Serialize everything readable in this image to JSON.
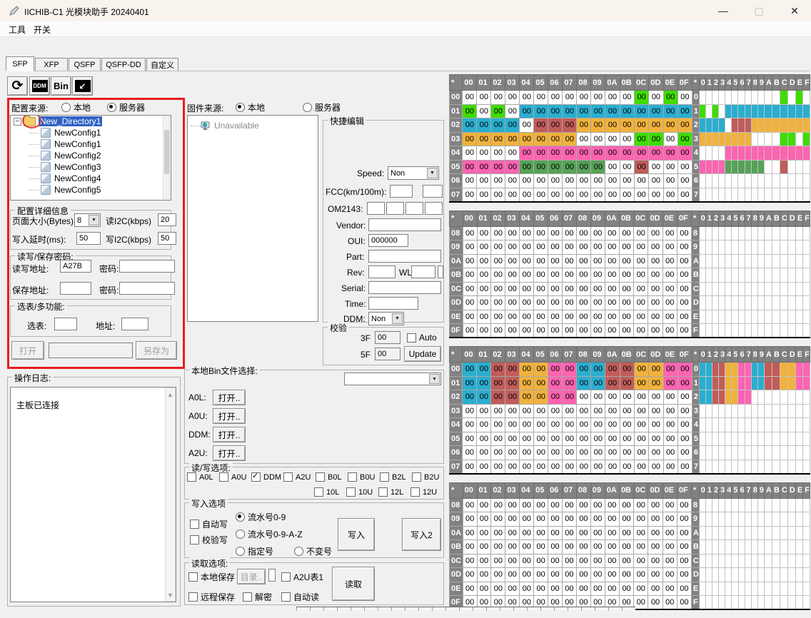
{
  "window": {
    "title": "IICHIB-C1 光模块助手 20240401",
    "minimize_icon": "—",
    "maximize_icon": "▢",
    "close_icon": "✕"
  },
  "menu": {
    "items": [
      "工具",
      "开关"
    ]
  },
  "tabs": {
    "items": [
      "SFP",
      "XFP",
      "QSFP",
      "QSFP-DD",
      "自定义"
    ],
    "active": "SFP"
  },
  "toolbar": {
    "ddm_label": "DDM",
    "bin_label": "Bin"
  },
  "config_panel": {
    "source_label": "配置来源:",
    "opt_local": "本地",
    "opt_server": "服务器",
    "selected": "服务器",
    "tree": {
      "root": "New_Directory1",
      "items": [
        "NewConfig1",
        "NewConfig1",
        "NewConfig2",
        "NewConfig3",
        "NewConfig4",
        "NewConfig5"
      ]
    },
    "details": {
      "legend": "配置详细信息",
      "page_size_label": "页面大小(Bytes):",
      "page_size": "8",
      "read_i2c_label": "读I2C(kbps)",
      "read_i2c": "20",
      "write_delay_label": "写入延时(ms):",
      "write_delay": "50",
      "write_i2c_label": "写I2C(kbps)",
      "write_i2c": "50"
    },
    "password": {
      "legend": "读写/保存密码:",
      "rw_addr_label": "读写地址:",
      "rw_addr": "A27B",
      "pwd_label": "密码:",
      "pwd": "",
      "save_addr_label": "保存地址:",
      "save_addr": "",
      "pwd2_label": "密码:",
      "pwd2": ""
    },
    "multi": {
      "legend": "选表/多功能:",
      "select_label": "选表:",
      "select_value": "",
      "addr_label": "地址:",
      "addr_value": ""
    },
    "open_btn": "打开",
    "path_value": "",
    "saveas_btn": "另存为"
  },
  "log_panel": {
    "legend": "操作日志:",
    "content": "主板已连接"
  },
  "firmware": {
    "source_label": "固件来源:",
    "opt_local": "本地",
    "opt_server": "服务器",
    "selected": "本地",
    "tree_item": "Unavailable"
  },
  "quick_edit": {
    "legend": "快捷编辑",
    "speed_label": "Speed:",
    "speed": "Non",
    "fcc_label": "FCC(km/100m):",
    "fcc1": "",
    "fcc2": "",
    "om_label": "OM2143:",
    "om1": "",
    "om2": "",
    "om3": "",
    "om4": "",
    "vendor_label": "Vendor:",
    "vendor": "",
    "oui_label": "OUI:",
    "oui": "000000",
    "part_label": "Part:",
    "part": "",
    "rev_label": "Rev:",
    "rev": "",
    "wl_label": "WL",
    "wl1": "",
    "wl2": "",
    "serial_label": "Serial:",
    "serial": "",
    "time_label": "Time:",
    "time": "",
    "ddm_label": "DDM:",
    "ddm": "Non"
  },
  "verify": {
    "legend": "校验",
    "f3_label": "3F",
    "f3": "00",
    "auto_label": "Auto",
    "f5_label": "5F",
    "f5": "00",
    "update_btn": "Update"
  },
  "bin_select": {
    "legend": "本地Bin文件选择:",
    "dropdown_value": "",
    "rows": [
      {
        "label": "A0L:",
        "btn": "打开.."
      },
      {
        "label": "A0U:",
        "btn": "打开.."
      },
      {
        "label": "DDM:",
        "btn": "打开.."
      },
      {
        "label": "A2U:",
        "btn": "打开.."
      }
    ]
  },
  "rw_options": {
    "legend": "读/写选项:",
    "row1": [
      {
        "label": "A0L",
        "checked": false
      },
      {
        "label": "A0U",
        "checked": false
      },
      {
        "label": "DDM",
        "checked": true
      },
      {
        "label": "A2U",
        "checked": false
      },
      {
        "label": "B0L",
        "checked": false
      },
      {
        "label": "B0U",
        "checked": false
      },
      {
        "label": "B2L",
        "checked": false
      },
      {
        "label": "B2U",
        "checked": false
      }
    ],
    "row2": [
      {
        "label": "10L",
        "checked": false
      },
      {
        "label": "10U",
        "checked": false
      },
      {
        "label": "12L",
        "checked": false
      },
      {
        "label": "12U",
        "checked": false
      }
    ]
  },
  "write_options": {
    "legend": "写入选项",
    "auto_write": "自动写",
    "verify_write": "校验写",
    "radios": [
      "流水号0-9",
      "流水号0-9-A-Z",
      "指定号",
      "不变号"
    ],
    "selected_radio": "流水号0-9",
    "write_btn": "写入",
    "write2_btn": "写入2"
  },
  "read_options": {
    "legend": "读取选项:",
    "local_save": "本地保存",
    "dir_btn": "目录..",
    "a2u_table": "A2U表1",
    "remote_save": "远程保存",
    "decrypt": "解密",
    "auto_read": "自动读",
    "read_btn": "读取"
  },
  "hex_grids": {
    "corner": "*",
    "col_headers": [
      "00",
      "01",
      "02",
      "03",
      "04",
      "05",
      "06",
      "07",
      "08",
      "09",
      "0A",
      "0B",
      "0C",
      "0D",
      "0E",
      "0F"
    ],
    "mini_headers": "0123456789ABCDEF",
    "cell_text": "00",
    "palette": {
      "W": "#ffffff",
      "G": "#3fdc00",
      "C": "#2aaed0",
      "O": "#f1b23c",
      "P": "#ff63b1",
      "R": "#c15c5a",
      "D": "#56a257"
    },
    "grids": [
      {
        "row_labels": [
          "00",
          "01",
          "02",
          "03",
          "04",
          "05",
          "06",
          "07"
        ],
        "rows": [
          "WWWWWWWWWWWWGWGW",
          "GWGWCCCCCCCCCCCC",
          "CCCCWRRROOOOOOOO",
          "OOOOOOOOWWWWGGWG",
          "WWWWPPPPPPPPPPPP",
          "PPPPDDDDDDWWRWWW",
          "WWWWWWWWWWWWWWWW",
          "WWWWWWWWWWWWWWWW"
        ]
      },
      {
        "row_labels": [
          "08",
          "09",
          "0A",
          "0B",
          "0C",
          "0D",
          "0E",
          "0F"
        ],
        "rows": [
          "WWWWWWWWWWWWWWWW",
          "WWWWWWWWWWWWWWWW",
          "WWWWWWWWWWWWWWWW",
          "WWWWWWWWWWWWWWWW",
          "WWWWWWWWWWWWWWWW",
          "WWWWWWWWWWWWWWWW",
          "WWWWWWWWWWWWWWWW",
          "WWWWWWWWWWWWWWWW"
        ]
      },
      {
        "row_labels": [
          "00",
          "01",
          "02",
          "03",
          "04",
          "05",
          "06",
          "07"
        ],
        "rows": [
          "CCRROOPPCCRROOPP",
          "CCRROOPPCCRROOPP",
          "CCRROOPPWWWWWWWW",
          "WWWWWWWWWWWWWWWW",
          "WWWWWWWWWWWWWWWW",
          "WWWWWWWWWWWWWWWW",
          "WWWWWWWWWWWWWWWW",
          "WWWWWWWWWWWWWWWW"
        ]
      },
      {
        "row_labels": [
          "08",
          "09",
          "0A",
          "0B",
          "0C",
          "0D",
          "0E",
          "0F"
        ],
        "rows": [
          "WWWWWWWWWWWWWWWW",
          "WWWWWWWWWWWWWWWW",
          "WWWWWWWWWWWWWWWW",
          "WWWWWWWWWWWWWWWW",
          "WWWWWWWWWWWWWWWW",
          "WWWWWWWWWWWWWWWW",
          "WWWWWWWWWWWWWWWW",
          "WWWWWWWWWWWWWWWW"
        ]
      }
    ]
  }
}
